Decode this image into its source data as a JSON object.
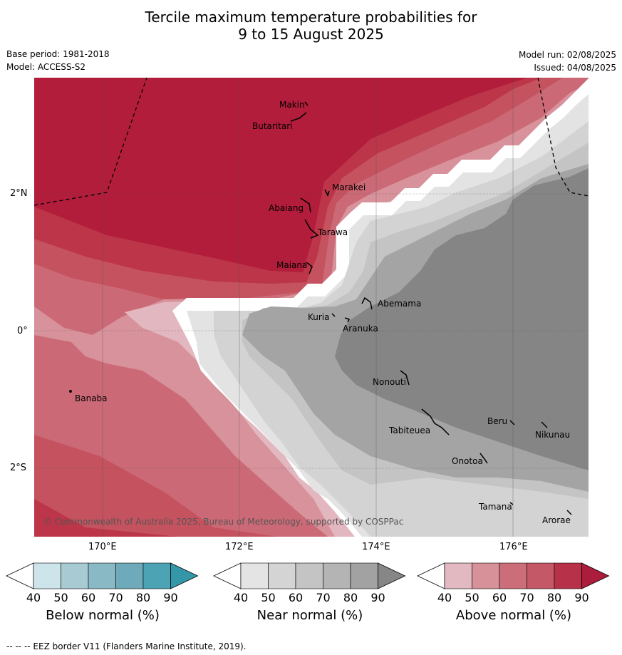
{
  "title_line1": "Tercile maximum temperature probabilities for",
  "title_line2": "9 to 15 August 2025",
  "meta": {
    "base_period": "Base period: 1981-2018",
    "model": "Model: ACCESS-S2",
    "model_run": "Model run: 02/08/2025",
    "issued": "Issued: 04/08/2025"
  },
  "axes": {
    "lat_labels": [
      "2°N",
      "0°",
      "2°S"
    ],
    "lon_labels": [
      "170°E",
      "172°E",
      "174°E",
      "176°E"
    ]
  },
  "places": [
    "Makin",
    "Butaritari",
    "Marakei",
    "Abaiang",
    "Tarawa",
    "Maiana",
    "Abemama",
    "Kuria",
    "Aranuka",
    "Nonouti",
    "Banaba",
    "Beru",
    "Nikunau",
    "Tabiteuea",
    "Onotoa",
    "Tamana",
    "Arorae"
  ],
  "copyright": "© Commonwealth of Australia 2025, Bureau of Meteorology, supported by COSPPac",
  "colorbars": [
    {
      "label": "Below normal (%)",
      "ticks": [
        "40",
        "50",
        "60",
        "70",
        "80",
        "90"
      ],
      "colors": [
        "#ffffff",
        "#cce4ea",
        "#a8cbd3",
        "#8ab9c6",
        "#6eaab9",
        "#4ca3b4",
        "#3397a8"
      ]
    },
    {
      "label": "Near normal (%)",
      "ticks": [
        "40",
        "50",
        "60",
        "70",
        "80",
        "90"
      ],
      "colors": [
        "#ffffff",
        "#e4e4e4",
        "#d4d4d4",
        "#c4c4c4",
        "#b4b4b4",
        "#a2a2a2",
        "#868686"
      ]
    },
    {
      "label": "Above normal (%)",
      "ticks": [
        "40",
        "50",
        "60",
        "70",
        "80",
        "90"
      ],
      "colors": [
        "#ffffff",
        "#e2b9c0",
        "#d79199",
        "#cc6e79",
        "#c45867",
        "#b73248",
        "#ac1c3b"
      ]
    }
  ],
  "footer": "--  --  -- EEZ border V11 (Flanders Marine Institute, 2019)."
}
